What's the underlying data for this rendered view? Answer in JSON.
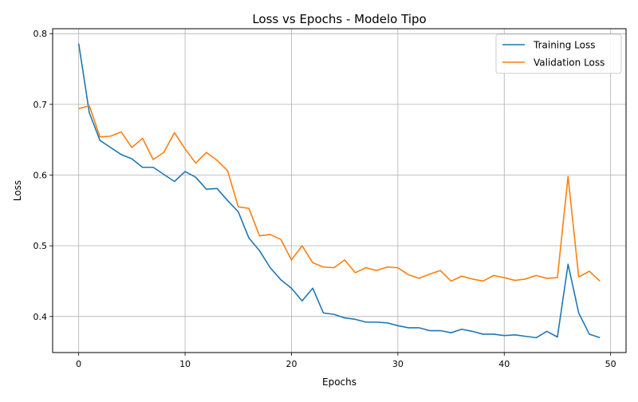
{
  "chart_data": {
    "type": "line",
    "title": "Loss vs Epochs - Modelo Tipo",
    "xlabel": "Epochs",
    "ylabel": "Loss",
    "xlim": [
      -2.45,
      51.45
    ],
    "ylim": [
      0.349,
      0.807
    ],
    "xticks": [
      0,
      10,
      20,
      30,
      40,
      50
    ],
    "yticks": [
      0.4,
      0.5,
      0.6,
      0.7,
      0.8
    ],
    "xtick_labels": [
      "0",
      "10",
      "20",
      "30",
      "40",
      "50"
    ],
    "ytick_labels": [
      "0.4",
      "0.5",
      "0.6",
      "0.7",
      "0.8"
    ],
    "grid": true,
    "legend_position": "top-right",
    "x": [
      0,
      1,
      2,
      3,
      4,
      5,
      6,
      7,
      8,
      9,
      10,
      11,
      12,
      13,
      14,
      15,
      16,
      17,
      18,
      19,
      20,
      21,
      22,
      23,
      24,
      25,
      26,
      27,
      28,
      29,
      30,
      31,
      32,
      33,
      34,
      35,
      36,
      37,
      38,
      39,
      40,
      41,
      42,
      43,
      44,
      45,
      46,
      47,
      48,
      49
    ],
    "series": [
      {
        "name": "Training Loss",
        "color": "#1f77b4",
        "values": [
          0.786,
          0.688,
          0.649,
          0.639,
          0.629,
          0.623,
          0.611,
          0.611,
          0.601,
          0.591,
          0.605,
          0.597,
          0.58,
          0.581,
          0.564,
          0.548,
          0.511,
          0.493,
          0.469,
          0.452,
          0.44,
          0.422,
          0.44,
          0.405,
          0.403,
          0.398,
          0.396,
          0.392,
          0.392,
          0.391,
          0.387,
          0.384,
          0.384,
          0.38,
          0.38,
          0.377,
          0.382,
          0.379,
          0.375,
          0.375,
          0.373,
          0.374,
          0.372,
          0.37,
          0.379,
          0.371,
          0.474,
          0.405,
          0.375,
          0.37
        ]
      },
      {
        "name": "Validation Loss",
        "color": "#ff7f0e",
        "values": [
          0.694,
          0.698,
          0.654,
          0.655,
          0.661,
          0.639,
          0.652,
          0.622,
          0.632,
          0.66,
          0.637,
          0.617,
          0.632,
          0.621,
          0.606,
          0.555,
          0.553,
          0.514,
          0.516,
          0.509,
          0.48,
          0.5,
          0.476,
          0.47,
          0.469,
          0.48,
          0.462,
          0.469,
          0.465,
          0.47,
          0.469,
          0.459,
          0.454,
          0.46,
          0.465,
          0.45,
          0.457,
          0.453,
          0.45,
          0.458,
          0.455,
          0.451,
          0.453,
          0.458,
          0.454,
          0.455,
          0.598,
          0.456,
          0.464,
          0.45
        ]
      }
    ]
  }
}
